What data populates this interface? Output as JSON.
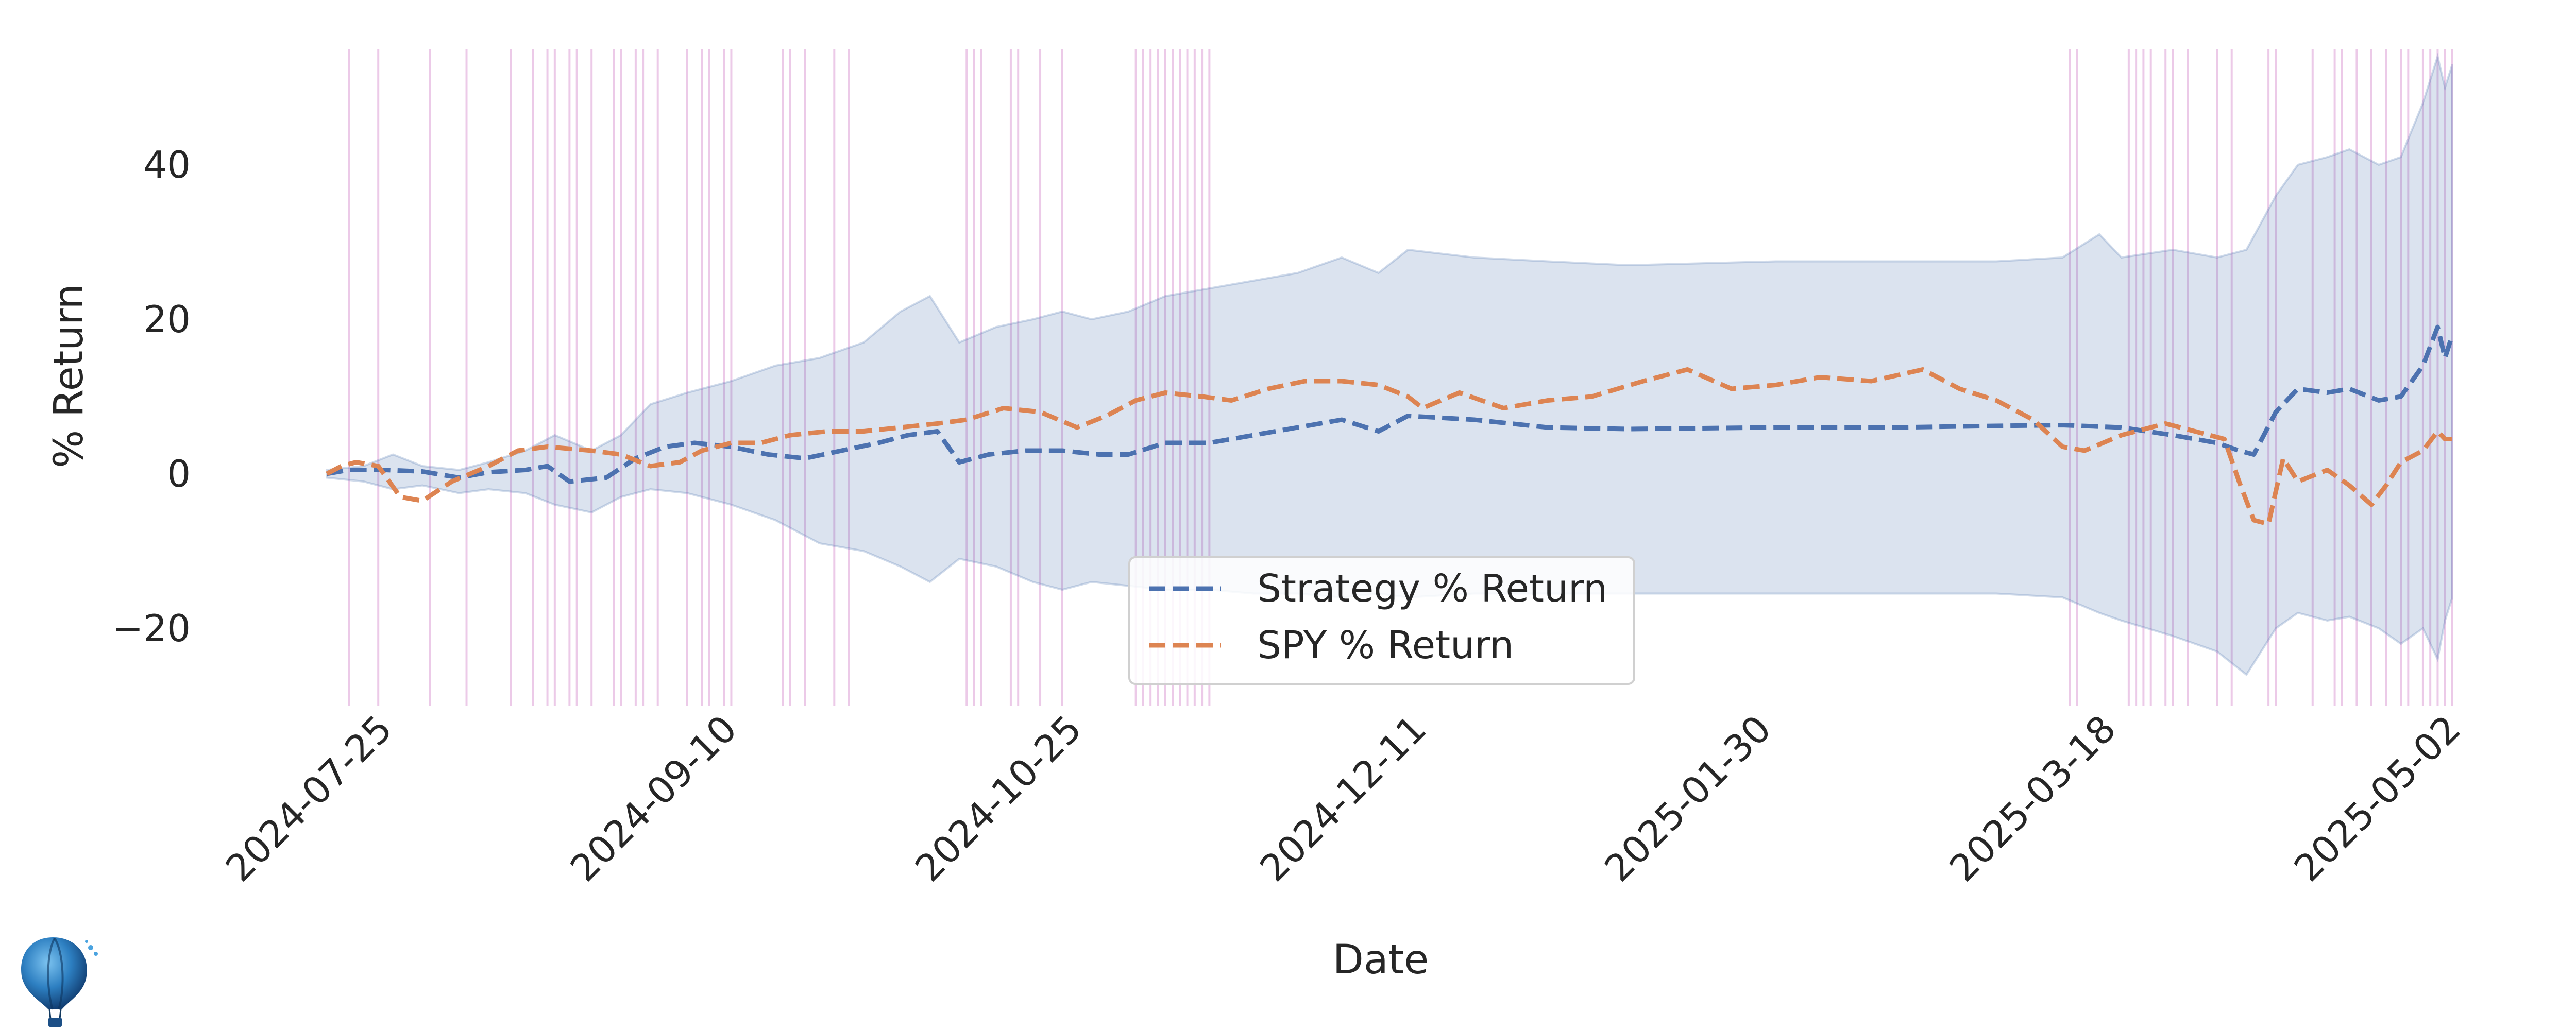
{
  "chart_data": {
    "type": "line",
    "title": "",
    "xlabel": "Date",
    "ylabel": "% Return",
    "x_tick_labels": [
      "2024-07-25",
      "2024-09-10",
      "2024-10-25",
      "2024-12-11",
      "2025-01-30",
      "2025-03-18",
      "2025-05-02"
    ],
    "y_ticks": [
      -20,
      0,
      20,
      40
    ],
    "ylim": [
      -30,
      55
    ],
    "xlim": [
      "2024-07-16",
      "2025-05-02"
    ],
    "grid": false,
    "legend_position": "lower-center",
    "series": [
      {
        "name": "Strategy % Return",
        "color": "#4c72b0",
        "style": "dashed",
        "points": [
          [
            "2024-07-17",
            0
          ],
          [
            "2024-07-20",
            0.5
          ],
          [
            "2024-07-25",
            0.5
          ],
          [
            "2024-07-30",
            0.3
          ],
          [
            "2024-08-04",
            -0.5
          ],
          [
            "2024-08-08",
            0.2
          ],
          [
            "2024-08-13",
            0.5
          ],
          [
            "2024-08-16",
            1
          ],
          [
            "2024-08-19",
            -1
          ],
          [
            "2024-08-24",
            -0.5
          ],
          [
            "2024-08-28",
            2
          ],
          [
            "2024-09-01",
            3.5
          ],
          [
            "2024-09-05",
            4
          ],
          [
            "2024-09-10",
            3.5
          ],
          [
            "2024-09-15",
            2.5
          ],
          [
            "2024-09-20",
            2
          ],
          [
            "2024-09-25",
            3
          ],
          [
            "2024-09-30",
            4
          ],
          [
            "2024-10-04",
            5
          ],
          [
            "2024-10-08",
            5.5
          ],
          [
            "2024-10-11",
            1.5
          ],
          [
            "2024-10-15",
            2.5
          ],
          [
            "2024-10-20",
            3
          ],
          [
            "2024-10-25",
            3
          ],
          [
            "2024-10-30",
            2.5
          ],
          [
            "2024-11-03",
            2.5
          ],
          [
            "2024-11-08",
            4
          ],
          [
            "2024-11-14",
            4
          ],
          [
            "2024-11-20",
            5
          ],
          [
            "2024-11-26",
            6
          ],
          [
            "2024-12-02",
            7
          ],
          [
            "2024-12-07",
            5.5
          ],
          [
            "2024-12-11",
            7.5
          ],
          [
            "2024-12-20",
            7
          ],
          [
            "2024-12-30",
            6
          ],
          [
            "2025-01-10",
            5.8
          ],
          [
            "2025-01-30",
            6
          ],
          [
            "2025-02-15",
            6
          ],
          [
            "2025-03-01",
            6.2
          ],
          [
            "2025-03-10",
            6.3
          ],
          [
            "2025-03-18",
            6
          ],
          [
            "2025-03-25",
            5
          ],
          [
            "2025-03-31",
            4
          ],
          [
            "2025-04-03",
            3
          ],
          [
            "2025-04-05",
            2.5
          ],
          [
            "2025-04-08",
            8
          ],
          [
            "2025-04-11",
            11
          ],
          [
            "2025-04-15",
            10.5
          ],
          [
            "2025-04-18",
            11
          ],
          [
            "2025-04-22",
            9.5
          ],
          [
            "2025-04-25",
            10
          ],
          [
            "2025-04-28",
            14
          ],
          [
            "2025-04-30",
            19
          ],
          [
            "2025-05-01",
            15
          ],
          [
            "2025-05-02",
            18
          ]
        ]
      },
      {
        "name": "SPY % Return",
        "color": "#dd8452",
        "style": "dashed",
        "points": [
          [
            "2024-07-17",
            0
          ],
          [
            "2024-07-19",
            1
          ],
          [
            "2024-07-21",
            1.5
          ],
          [
            "2024-07-24",
            1
          ],
          [
            "2024-07-27",
            -3
          ],
          [
            "2024-07-30",
            -3.5
          ],
          [
            "2024-08-03",
            -1
          ],
          [
            "2024-08-08",
            1
          ],
          [
            "2024-08-12",
            3
          ],
          [
            "2024-08-16",
            3.5
          ],
          [
            "2024-08-22",
            3
          ],
          [
            "2024-08-26",
            2.5
          ],
          [
            "2024-08-30",
            1
          ],
          [
            "2024-09-03",
            1.5
          ],
          [
            "2024-09-06",
            3
          ],
          [
            "2024-09-10",
            4
          ],
          [
            "2024-09-14",
            4
          ],
          [
            "2024-09-18",
            5
          ],
          [
            "2024-09-23",
            5.5
          ],
          [
            "2024-09-28",
            5.5
          ],
          [
            "2024-10-03",
            6
          ],
          [
            "2024-10-08",
            6.5
          ],
          [
            "2024-10-12",
            7
          ],
          [
            "2024-10-17",
            8.5
          ],
          [
            "2024-10-22",
            8
          ],
          [
            "2024-10-27",
            6
          ],
          [
            "2024-10-31",
            7.5
          ],
          [
            "2024-11-04",
            9.5
          ],
          [
            "2024-11-08",
            10.5
          ],
          [
            "2024-11-13",
            10
          ],
          [
            "2024-11-17",
            9.5
          ],
          [
            "2024-11-22",
            11
          ],
          [
            "2024-11-27",
            12
          ],
          [
            "2024-12-02",
            12
          ],
          [
            "2024-12-07",
            11.5
          ],
          [
            "2024-12-11",
            10
          ],
          [
            "2024-12-13",
            8.5
          ],
          [
            "2024-12-18",
            10.5
          ],
          [
            "2024-12-24",
            8.5
          ],
          [
            "2024-12-30",
            9.5
          ],
          [
            "2025-01-05",
            10
          ],
          [
            "2025-01-12",
            12
          ],
          [
            "2025-01-18",
            13.5
          ],
          [
            "2025-01-24",
            11
          ],
          [
            "2025-01-30",
            11.5
          ],
          [
            "2025-02-05",
            12.5
          ],
          [
            "2025-02-12",
            12
          ],
          [
            "2025-02-19",
            13.5
          ],
          [
            "2025-02-24",
            11
          ],
          [
            "2025-03-01",
            9.5
          ],
          [
            "2025-03-06",
            7
          ],
          [
            "2025-03-10",
            3.5
          ],
          [
            "2025-03-13",
            3
          ],
          [
            "2025-03-18",
            5
          ],
          [
            "2025-03-24",
            6.5
          ],
          [
            "2025-03-28",
            5.5
          ],
          [
            "2025-04-01",
            4.5
          ],
          [
            "2025-04-03",
            -1
          ],
          [
            "2025-04-05",
            -6
          ],
          [
            "2025-04-07",
            -6.5
          ],
          [
            "2025-04-09",
            2
          ],
          [
            "2025-04-11",
            -1
          ],
          [
            "2025-04-15",
            0.5
          ],
          [
            "2025-04-18",
            -1.5
          ],
          [
            "2025-04-21",
            -4
          ],
          [
            "2025-04-23",
            -1.5
          ],
          [
            "2025-04-25",
            1.5
          ],
          [
            "2025-04-28",
            3
          ],
          [
            "2025-04-30",
            5.5
          ],
          [
            "2025-05-01",
            4.5
          ],
          [
            "2025-05-02",
            4.5
          ]
        ]
      }
    ],
    "confidence_band": {
      "name": "",
      "color": "#4c72b0",
      "opacity": 0.2,
      "upper": [
        [
          "2024-07-17",
          0.5
        ],
        [
          "2024-07-22",
          1
        ],
        [
          "2024-07-26",
          2.5
        ],
        [
          "2024-07-30",
          1
        ],
        [
          "2024-08-04",
          0.5
        ],
        [
          "2024-08-08",
          1.5
        ],
        [
          "2024-08-13",
          3
        ],
        [
          "2024-08-17",
          5
        ],
        [
          "2024-08-22",
          3
        ],
        [
          "2024-08-26",
          5
        ],
        [
          "2024-08-30",
          9
        ],
        [
          "2024-09-04",
          10.5
        ],
        [
          "2024-09-10",
          12
        ],
        [
          "2024-09-16",
          14
        ],
        [
          "2024-09-22",
          15
        ],
        [
          "2024-09-28",
          17
        ],
        [
          "2024-10-03",
          21
        ],
        [
          "2024-10-07",
          23
        ],
        [
          "2024-10-11",
          17
        ],
        [
          "2024-10-16",
          19
        ],
        [
          "2024-10-21",
          20
        ],
        [
          "2024-10-25",
          21
        ],
        [
          "2024-10-29",
          20
        ],
        [
          "2024-11-03",
          21
        ],
        [
          "2024-11-08",
          23
        ],
        [
          "2024-11-14",
          24
        ],
        [
          "2024-11-20",
          25
        ],
        [
          "2024-11-26",
          26
        ],
        [
          "2024-12-02",
          28
        ],
        [
          "2024-12-07",
          26
        ],
        [
          "2024-12-11",
          29
        ],
        [
          "2024-12-20",
          28
        ],
        [
          "2024-12-30",
          27.5
        ],
        [
          "2025-01-10",
          27
        ],
        [
          "2025-01-30",
          27.5
        ],
        [
          "2025-02-15",
          27.5
        ],
        [
          "2025-03-01",
          27.5
        ],
        [
          "2025-03-10",
          28
        ],
        [
          "2025-03-15",
          31
        ],
        [
          "2025-03-18",
          28
        ],
        [
          "2025-03-25",
          29
        ],
        [
          "2025-03-31",
          28
        ],
        [
          "2025-04-04",
          29
        ],
        [
          "2025-04-08",
          36
        ],
        [
          "2025-04-11",
          40
        ],
        [
          "2025-04-15",
          41
        ],
        [
          "2025-04-18",
          42
        ],
        [
          "2025-04-22",
          40
        ],
        [
          "2025-04-25",
          41
        ],
        [
          "2025-04-28",
          48
        ],
        [
          "2025-04-30",
          54
        ],
        [
          "2025-05-01",
          50
        ],
        [
          "2025-05-02",
          53
        ]
      ],
      "lower": [
        [
          "2024-07-17",
          -0.5
        ],
        [
          "2024-07-22",
          -1
        ],
        [
          "2024-07-26",
          -2
        ],
        [
          "2024-07-30",
          -1.5
        ],
        [
          "2024-08-04",
          -2.5
        ],
        [
          "2024-08-08",
          -2
        ],
        [
          "2024-08-13",
          -2.5
        ],
        [
          "2024-08-17",
          -4
        ],
        [
          "2024-08-22",
          -5
        ],
        [
          "2024-08-26",
          -3
        ],
        [
          "2024-08-30",
          -2
        ],
        [
          "2024-09-04",
          -2.5
        ],
        [
          "2024-09-10",
          -4
        ],
        [
          "2024-09-16",
          -6
        ],
        [
          "2024-09-22",
          -9
        ],
        [
          "2024-09-28",
          -10
        ],
        [
          "2024-10-03",
          -12
        ],
        [
          "2024-10-07",
          -14
        ],
        [
          "2024-10-11",
          -11
        ],
        [
          "2024-10-16",
          -12
        ],
        [
          "2024-10-21",
          -14
        ],
        [
          "2024-10-25",
          -15
        ],
        [
          "2024-10-29",
          -14
        ],
        [
          "2024-11-03",
          -14.5
        ],
        [
          "2024-11-08",
          -15
        ],
        [
          "2024-11-14",
          -15
        ],
        [
          "2024-11-20",
          -15.5
        ],
        [
          "2024-11-26",
          -15.5
        ],
        [
          "2024-12-02",
          -16
        ],
        [
          "2024-12-07",
          -15.5
        ],
        [
          "2024-12-11",
          -16
        ],
        [
          "2024-12-20",
          -15.5
        ],
        [
          "2024-12-30",
          -15.5
        ],
        [
          "2025-01-10",
          -15.5
        ],
        [
          "2025-01-30",
          -15.5
        ],
        [
          "2025-02-15",
          -15.5
        ],
        [
          "2025-03-01",
          -15.5
        ],
        [
          "2025-03-10",
          -16
        ],
        [
          "2025-03-15",
          -18
        ],
        [
          "2025-03-18",
          -19
        ],
        [
          "2025-03-25",
          -21
        ],
        [
          "2025-03-31",
          -23
        ],
        [
          "2025-04-04",
          -26
        ],
        [
          "2025-04-08",
          -20
        ],
        [
          "2025-04-11",
          -18
        ],
        [
          "2025-04-15",
          -19
        ],
        [
          "2025-04-18",
          -18.5
        ],
        [
          "2025-04-22",
          -20
        ],
        [
          "2025-04-25",
          -22
        ],
        [
          "2025-04-28",
          -20
        ],
        [
          "2025-04-30",
          -24
        ],
        [
          "2025-05-01",
          -19
        ],
        [
          "2025-05-02",
          -16
        ]
      ]
    },
    "event_lines": {
      "color": "#dd9ed6",
      "dates": [
        "2024-07-20",
        "2024-07-24",
        "2024-07-31",
        "2024-08-05",
        "2024-08-11",
        "2024-08-14",
        "2024-08-16",
        "2024-08-17",
        "2024-08-19",
        "2024-08-20",
        "2024-08-22",
        "2024-08-25",
        "2024-08-26",
        "2024-08-28",
        "2024-08-29",
        "2024-08-31",
        "2024-09-04",
        "2024-09-06",
        "2024-09-07",
        "2024-09-09",
        "2024-09-10",
        "2024-09-17",
        "2024-09-18",
        "2024-09-20",
        "2024-09-24",
        "2024-09-26",
        "2024-10-12",
        "2024-10-13",
        "2024-10-14",
        "2024-10-18",
        "2024-10-19",
        "2024-10-22",
        "2024-10-25",
        "2024-11-04",
        "2024-11-05",
        "2024-11-06",
        "2024-11-07",
        "2024-11-08",
        "2024-11-09",
        "2024-11-10",
        "2024-11-11",
        "2024-11-12",
        "2024-11-13",
        "2024-11-14",
        "2025-03-11",
        "2025-03-12",
        "2025-03-19",
        "2025-03-20",
        "2025-03-21",
        "2025-03-22",
        "2025-03-24",
        "2025-03-25",
        "2025-03-27",
        "2025-03-31",
        "2025-04-02",
        "2025-04-07",
        "2025-04-08",
        "2025-04-13",
        "2025-04-16",
        "2025-04-17",
        "2025-04-19",
        "2025-04-21",
        "2025-04-23",
        "2025-04-25",
        "2025-04-26",
        "2025-04-28",
        "2025-04-29",
        "2025-04-30",
        "2025-05-01",
        "2025-05-02"
      ]
    }
  }
}
